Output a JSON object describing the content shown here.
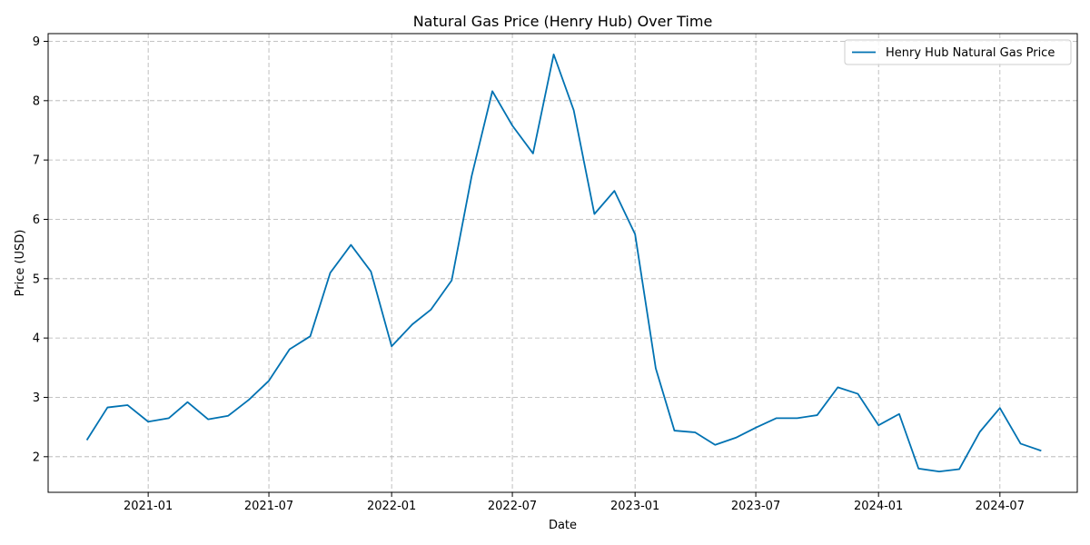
{
  "chart_data": {
    "type": "line",
    "title": "Natural Gas Price (Henry Hub) Over Time",
    "xlabel": "Date",
    "ylabel": "Price (USD)",
    "x_ticks": [
      "2021-01",
      "2021-07",
      "2022-01",
      "2022-07",
      "2023-01",
      "2023-07",
      "2024-01",
      "2024-07"
    ],
    "y_ticks": [
      2,
      3,
      4,
      5,
      6,
      7,
      8,
      9
    ],
    "ylim": [
      1.4,
      9.13
    ],
    "xlim": [
      "2020-08-04",
      "2024-10-25"
    ],
    "grid": true,
    "legend_position": "top-right",
    "series": [
      {
        "name": "Henry Hub Natural Gas Price",
        "color": "#0072b2",
        "x": [
          "2020-10-01",
          "2020-11-01",
          "2020-12-01",
          "2021-01-01",
          "2021-02-01",
          "2021-03-01",
          "2021-04-01",
          "2021-05-01",
          "2021-06-01",
          "2021-07-01",
          "2021-08-01",
          "2021-09-01",
          "2021-10-01",
          "2021-11-01",
          "2021-12-01",
          "2022-01-01",
          "2022-02-01",
          "2022-03-01",
          "2022-04-01",
          "2022-05-01",
          "2022-06-01",
          "2022-07-01",
          "2022-08-01",
          "2022-09-01",
          "2022-10-01",
          "2022-11-01",
          "2022-12-01",
          "2023-01-01",
          "2023-02-01",
          "2023-03-01",
          "2023-04-01",
          "2023-05-01",
          "2023-06-01",
          "2023-07-01",
          "2023-08-01",
          "2023-09-01",
          "2023-10-01",
          "2023-11-01",
          "2023-12-01",
          "2024-01-01",
          "2024-02-01",
          "2024-03-01",
          "2024-04-01",
          "2024-05-01",
          "2024-06-01",
          "2024-07-01",
          "2024-08-01",
          "2024-09-01"
        ],
        "values": [
          2.28,
          2.83,
          2.87,
          2.59,
          2.65,
          2.92,
          2.63,
          2.69,
          2.96,
          3.28,
          3.81,
          4.03,
          5.1,
          5.57,
          5.12,
          3.86,
          4.23,
          4.48,
          4.97,
          6.73,
          8.16,
          7.58,
          7.11,
          8.78,
          7.84,
          6.09,
          6.48,
          5.75,
          3.49,
          2.44,
          2.41,
          2.2,
          2.32,
          2.49,
          2.65,
          2.65,
          2.7,
          3.17,
          3.06,
          2.53,
          2.72,
          1.8,
          1.75,
          1.79,
          2.42,
          2.82,
          2.22,
          2.1
        ]
      }
    ]
  }
}
